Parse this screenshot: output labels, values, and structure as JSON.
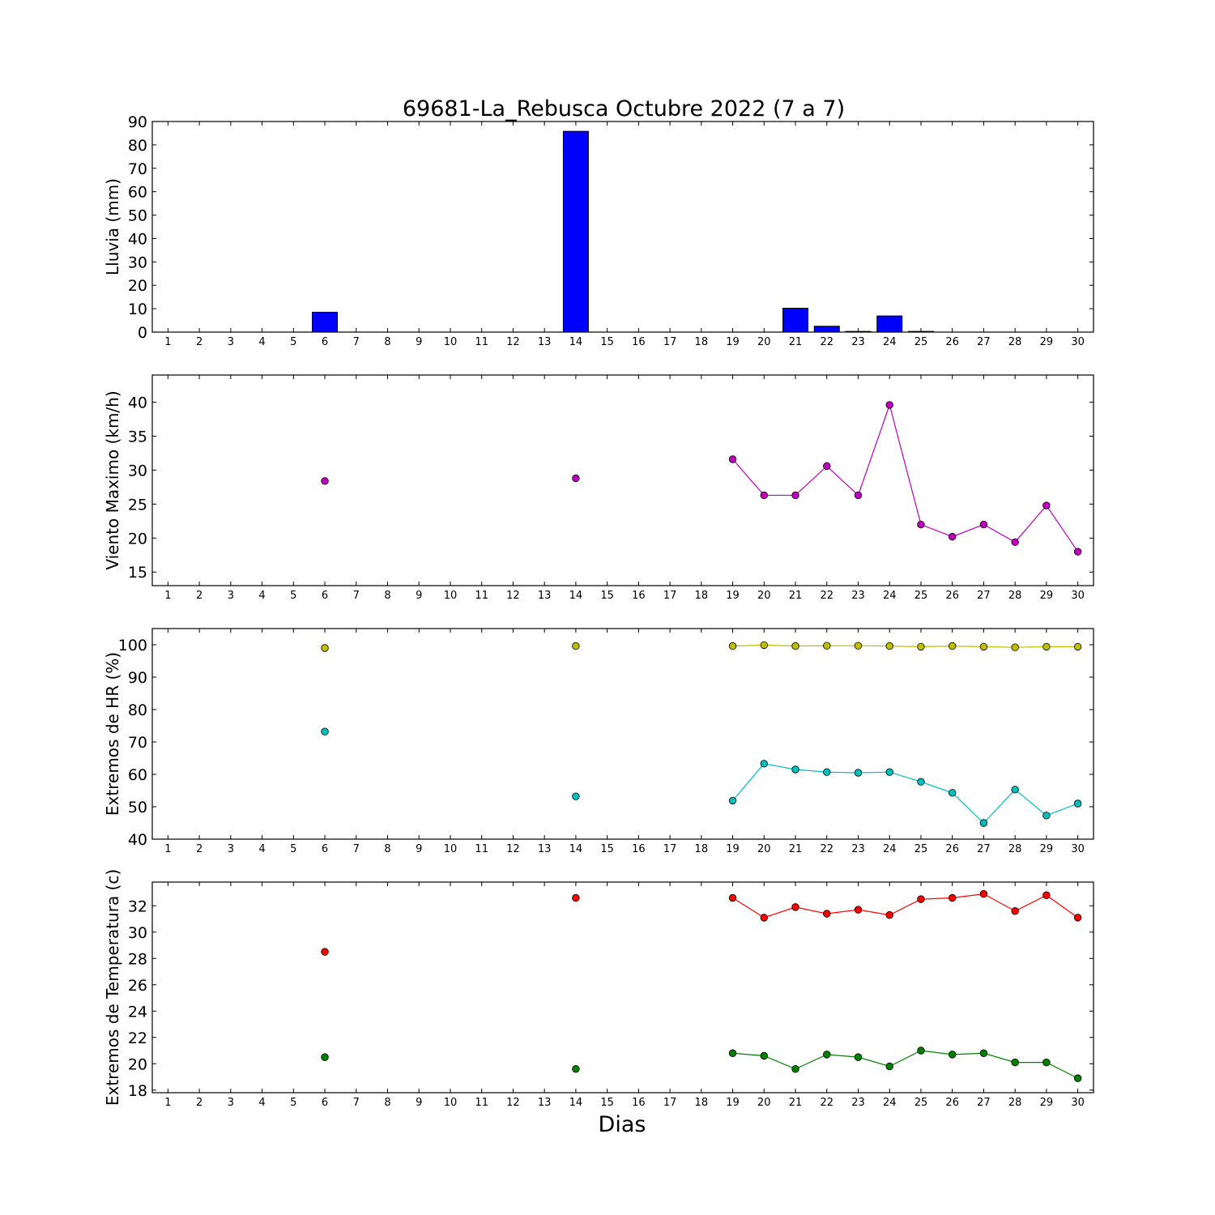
{
  "title": "69681-La_Rebusca Octubre 2022  (7 a 7)",
  "xlabel": "Dias",
  "days": [
    1,
    2,
    3,
    4,
    5,
    6,
    7,
    8,
    9,
    10,
    11,
    12,
    13,
    14,
    15,
    16,
    17,
    18,
    19,
    20,
    21,
    22,
    23,
    24,
    25,
    26,
    27,
    28,
    29,
    30
  ],
  "chart_data": [
    {
      "type": "bar",
      "ylabel": "Lluvia (mm)",
      "ylim": [
        0,
        90
      ],
      "yticks": [
        0,
        10,
        20,
        30,
        40,
        50,
        60,
        70,
        80,
        90
      ],
      "categories": [
        1,
        2,
        3,
        4,
        5,
        6,
        7,
        8,
        9,
        10,
        11,
        12,
        13,
        14,
        15,
        16,
        17,
        18,
        19,
        20,
        21,
        22,
        23,
        24,
        25,
        26,
        27,
        28,
        29,
        30
      ],
      "values": [
        null,
        null,
        null,
        null,
        null,
        8.5,
        null,
        null,
        null,
        null,
        null,
        null,
        null,
        85.8,
        null,
        null,
        null,
        null,
        0,
        0,
        10.2,
        2.5,
        0.3,
        6.9,
        0.3,
        0,
        0,
        0,
        0,
        0
      ],
      "color": "#0000ff"
    },
    {
      "type": "line",
      "ylabel": "Viento Maximo (km/h)",
      "ylim": [
        13,
        44
      ],
      "yticks": [
        15,
        20,
        25,
        30,
        35,
        40
      ],
      "x": [
        1,
        2,
        3,
        4,
        5,
        6,
        7,
        8,
        9,
        10,
        11,
        12,
        13,
        14,
        15,
        16,
        17,
        18,
        19,
        20,
        21,
        22,
        23,
        24,
        25,
        26,
        27,
        28,
        29,
        30
      ],
      "series": [
        {
          "color": "#bf00bf",
          "values": [
            null,
            null,
            null,
            null,
            null,
            28.4,
            null,
            null,
            null,
            null,
            null,
            null,
            null,
            28.8,
            null,
            null,
            null,
            null,
            31.6,
            26.3,
            26.3,
            30.6,
            26.3,
            39.6,
            22.0,
            20.2,
            22.0,
            19.4,
            24.8,
            18.0
          ]
        }
      ]
    },
    {
      "type": "line",
      "ylabel": "Extremos de HR (%)",
      "ylim": [
        40,
        105
      ],
      "yticks": [
        40,
        50,
        60,
        70,
        80,
        90,
        100
      ],
      "x": [
        1,
        2,
        3,
        4,
        5,
        6,
        7,
        8,
        9,
        10,
        11,
        12,
        13,
        14,
        15,
        16,
        17,
        18,
        19,
        20,
        21,
        22,
        23,
        24,
        25,
        26,
        27,
        28,
        29,
        30
      ],
      "series": [
        {
          "color": "#bfbf00",
          "values": [
            null,
            null,
            null,
            null,
            null,
            99.0,
            null,
            null,
            null,
            null,
            null,
            null,
            null,
            99.6,
            null,
            null,
            null,
            null,
            99.6,
            99.9,
            99.6,
            99.7,
            99.7,
            99.6,
            99.4,
            99.6,
            99.4,
            99.2,
            99.4,
            99.4
          ]
        },
        {
          "color": "#00bfbf",
          "values": [
            null,
            null,
            null,
            null,
            null,
            73.2,
            null,
            null,
            null,
            null,
            null,
            null,
            null,
            53.2,
            null,
            null,
            null,
            null,
            51.9,
            63.3,
            61.5,
            60.7,
            60.5,
            60.7,
            57.7,
            54.3,
            45.0,
            55.3,
            47.3,
            51.0
          ]
        }
      ]
    },
    {
      "type": "line",
      "ylabel": "Extremos de Temperatura (c)",
      "ylim": [
        17.8,
        33.8
      ],
      "yticks": [
        18,
        20,
        22,
        24,
        26,
        28,
        30,
        32
      ],
      "x": [
        1,
        2,
        3,
        4,
        5,
        6,
        7,
        8,
        9,
        10,
        11,
        12,
        13,
        14,
        15,
        16,
        17,
        18,
        19,
        20,
        21,
        22,
        23,
        24,
        25,
        26,
        27,
        28,
        29,
        30
      ],
      "series": [
        {
          "color": "#ff0000",
          "values": [
            null,
            null,
            null,
            null,
            null,
            28.5,
            null,
            null,
            null,
            null,
            null,
            null,
            null,
            32.6,
            null,
            null,
            null,
            null,
            32.6,
            31.1,
            31.9,
            31.4,
            31.7,
            31.3,
            32.5,
            32.6,
            32.9,
            31.6,
            32.8,
            31.1
          ]
        },
        {
          "color": "#008000",
          "values": [
            null,
            null,
            null,
            null,
            null,
            20.5,
            null,
            null,
            null,
            null,
            null,
            null,
            null,
            19.6,
            null,
            null,
            null,
            null,
            20.8,
            20.6,
            19.6,
            20.7,
            20.5,
            19.8,
            21.0,
            20.7,
            20.8,
            20.1,
            20.1,
            18.9
          ]
        }
      ]
    }
  ]
}
